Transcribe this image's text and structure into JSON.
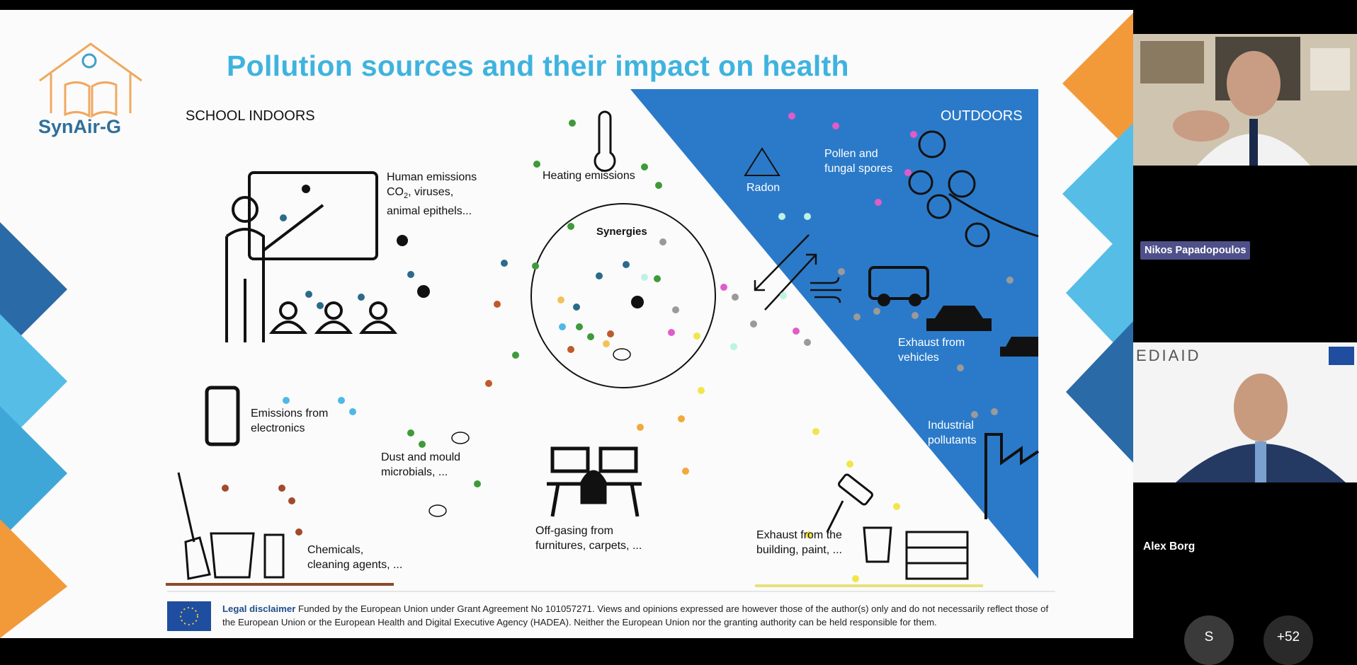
{
  "slide": {
    "title": "Pollution sources and their impact on health",
    "logo_text": "SynAir-G",
    "indoor_heading": "SCHOOL INDOORS",
    "outdoor_heading": "OUTDOORS",
    "labels": {
      "human_1": "Human emissions",
      "human_2_prefix": "CO",
      "human_2_sub": "2",
      "human_2_rest": ", viruses,",
      "human_3": "animal epithels...",
      "heating": "Heating emissions",
      "synergies": "Synergies",
      "radon": "Radon",
      "pollen_1": "Pollen and",
      "pollen_2": "fungal spores",
      "electronics_1": "Emissions from",
      "electronics_2": "electronics",
      "dust_1": "Dust and mould",
      "dust_2": "microbials, ...",
      "vehicles_1": "Exhaust from",
      "vehicles_2": "vehicles",
      "industrial_1": "Industrial",
      "industrial_2": "pollutants",
      "chemicals_1": "Chemicals,",
      "chemicals_2": "cleaning agents, ...",
      "offgas_1": "Off-gasing from",
      "offgas_2": "furnitures, carpets, ...",
      "building_1": "Exhaust from the",
      "building_2": "building, paint, ..."
    },
    "disclaimer": {
      "bold": "Legal disclaimer",
      "text": " Funded by the European Union under Grant Agreement No 101057271. Views and opinions expressed are however those of the author(s) only and do not necessarily reflect those of the European Union or the European Health and Digital Executive Agency (HADEA). Neither the European Union nor the granting authority can be held responsible for them."
    },
    "colors": {
      "title": "#3fb3df",
      "outdoor_blue": "#2b7ac9",
      "accent_orange": "#f29a3a",
      "accent_light_blue": "#56bde6",
      "accent_dark_blue": "#2a6aa6"
    }
  },
  "participants": {
    "speaker_name": "Nikos Papadopoulos",
    "second_name": "Alex Borg",
    "second_bg_logo": "EDIAID",
    "avatar_initial": "S",
    "more_count": "+52"
  }
}
